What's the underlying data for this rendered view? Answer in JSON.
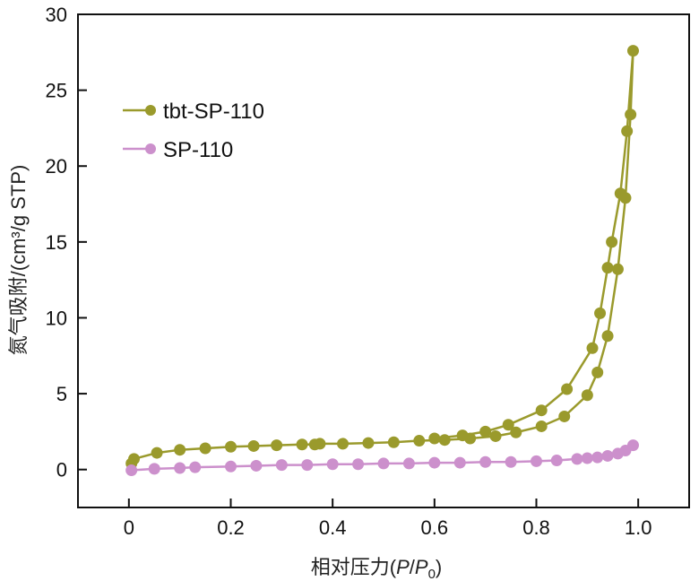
{
  "chart_data": {
    "type": "line",
    "title": "",
    "xlabel": "相对压力(P/P0)",
    "xlabel_parts": {
      "prefix": "相对压力(",
      "p1": "P",
      "slash": "/",
      "p2": "P",
      "sub": "0",
      "suffix": ")"
    },
    "ylabel": "氮气吸附/(cm³/g STP)",
    "xlim": [
      -0.1,
      1.1
    ],
    "ylim": [
      -2.5,
      30
    ],
    "xticks": [
      0,
      0.2,
      0.4,
      0.6,
      0.8,
      1.0
    ],
    "xtick_labels": [
      "0",
      "0.2",
      "0.4",
      "0.6",
      "0.8",
      "1.0"
    ],
    "yticks": [
      0,
      5,
      10,
      15,
      20,
      25,
      30
    ],
    "ytick_labels": [
      "0",
      "5",
      "10",
      "15",
      "20",
      "25",
      "30"
    ],
    "grid": false,
    "legend_position": "top-left",
    "series": [
      {
        "name": "tbt-SP-110",
        "color": "#9a9a2c",
        "points": [
          [
            0.005,
            0.4
          ],
          [
            0.01,
            0.7
          ],
          [
            0.055,
            1.1
          ],
          [
            0.1,
            1.3
          ],
          [
            0.15,
            1.4
          ],
          [
            0.2,
            1.5
          ],
          [
            0.245,
            1.55
          ],
          [
            0.29,
            1.6
          ],
          [
            0.34,
            1.65
          ],
          [
            0.365,
            1.65
          ],
          [
            0.375,
            1.7
          ],
          [
            0.42,
            1.7
          ],
          [
            0.47,
            1.75
          ],
          [
            0.52,
            1.8
          ],
          [
            0.57,
            1.9
          ],
          [
            0.62,
            1.95
          ],
          [
            0.67,
            2.05
          ],
          [
            0.72,
            2.2
          ],
          [
            0.76,
            2.45
          ],
          [
            0.81,
            2.85
          ],
          [
            0.855,
            3.5
          ],
          [
            0.9,
            4.9
          ],
          [
            0.92,
            6.4
          ],
          [
            0.94,
            8.8
          ],
          [
            0.96,
            13.2
          ],
          [
            0.975,
            17.9
          ],
          [
            0.985,
            23.4
          ],
          [
            0.99,
            27.6
          ],
          [
            0.978,
            22.3
          ],
          [
            0.965,
            18.2
          ],
          [
            0.948,
            15.0
          ],
          [
            0.94,
            13.3
          ],
          [
            0.925,
            10.3
          ],
          [
            0.91,
            8.0
          ],
          [
            0.86,
            5.3
          ],
          [
            0.81,
            3.9
          ],
          [
            0.745,
            2.95
          ],
          [
            0.7,
            2.5
          ],
          [
            0.655,
            2.25
          ],
          [
            0.6,
            2.05
          ]
        ]
      },
      {
        "name": "SP-110",
        "color": "#cc90cc",
        "points": [
          [
            0.005,
            -0.05
          ],
          [
            0.05,
            0.05
          ],
          [
            0.1,
            0.1
          ],
          [
            0.13,
            0.15
          ],
          [
            0.2,
            0.2
          ],
          [
            0.25,
            0.25
          ],
          [
            0.3,
            0.3
          ],
          [
            0.35,
            0.3
          ],
          [
            0.4,
            0.35
          ],
          [
            0.45,
            0.35
          ],
          [
            0.5,
            0.4
          ],
          [
            0.55,
            0.4
          ],
          [
            0.6,
            0.45
          ],
          [
            0.65,
            0.45
          ],
          [
            0.7,
            0.5
          ],
          [
            0.75,
            0.5
          ],
          [
            0.8,
            0.55
          ],
          [
            0.84,
            0.6
          ],
          [
            0.88,
            0.7
          ],
          [
            0.9,
            0.75
          ],
          [
            0.92,
            0.8
          ],
          [
            0.94,
            0.9
          ],
          [
            0.96,
            1.05
          ],
          [
            0.975,
            1.25
          ],
          [
            0.99,
            1.6
          ]
        ]
      }
    ]
  }
}
